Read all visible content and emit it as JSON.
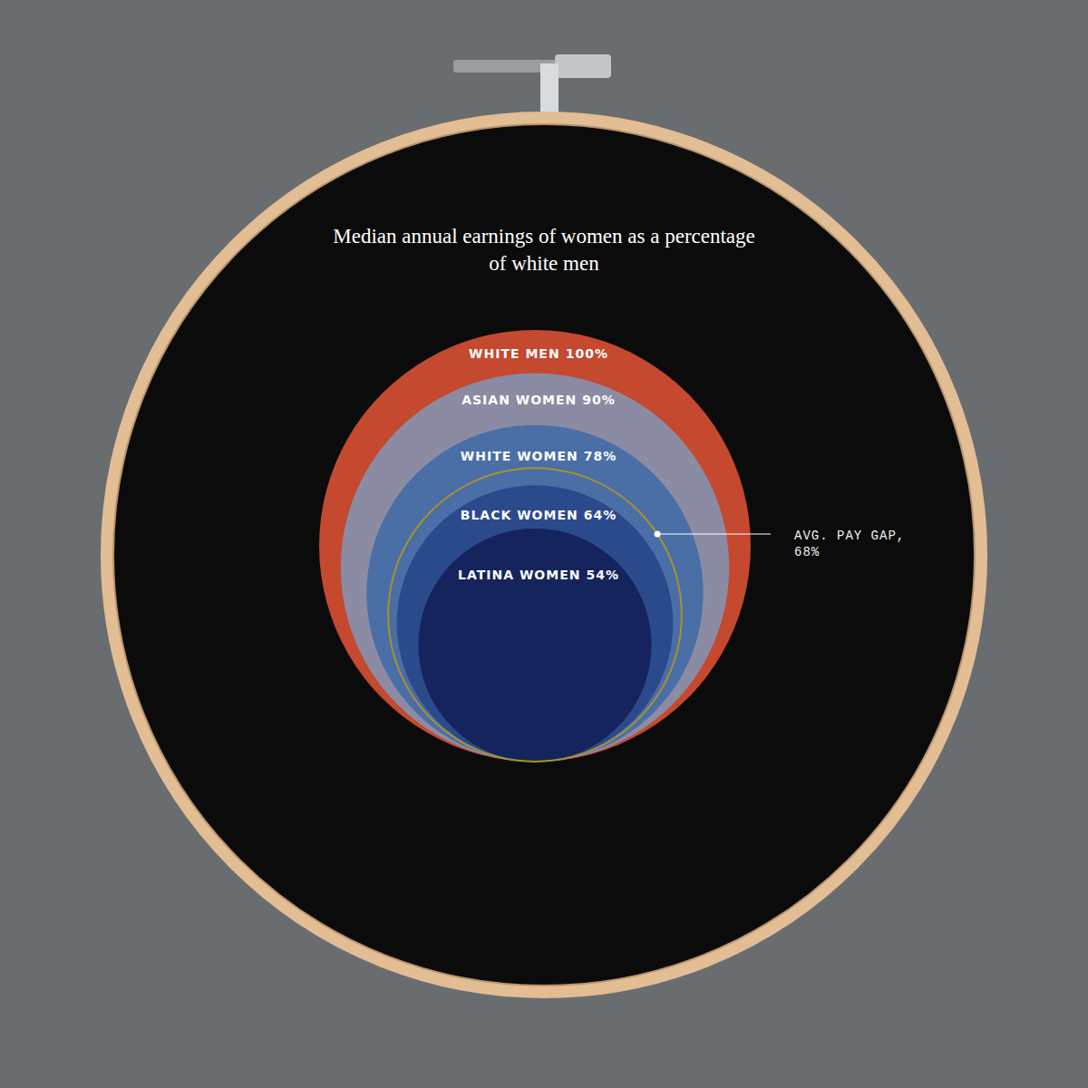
{
  "chart_data": {
    "type": "circles",
    "title": "Median annual earnings of women as a percentage of white men",
    "categories": [
      "WHITE MEN",
      "ASIAN WOMEN",
      "WHITE WOMEN",
      "BLACK WOMEN",
      "LATINA WOMEN"
    ],
    "values": [
      100,
      90,
      78,
      64,
      54
    ],
    "value_labels": [
      "100%",
      "90%",
      "78%",
      "64%",
      "54%"
    ],
    "colors": [
      "#c4492f",
      "#8b8ba3",
      "#4a6ea6",
      "#2b4a8c",
      "#15245c"
    ],
    "data_labels": true,
    "annotation": {
      "text": "AVG. PAY GAP, 68%",
      "value": 68,
      "color": "#a8922e"
    }
  }
}
